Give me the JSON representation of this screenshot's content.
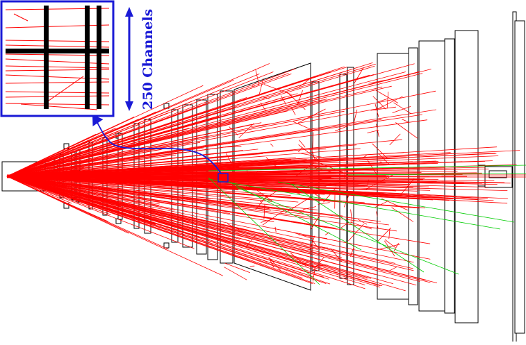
{
  "figure": {
    "inset_label": "250 Channels",
    "colors": {
      "background": "#ffffff",
      "outline": "#000000",
      "tracks": "#ff0000",
      "secondary_tracks": "#00cc00",
      "highlight": "#1a1ad6",
      "inset_bars": "#000000"
    },
    "components": [
      "beam-pipe-block",
      "vertex-station-pairs",
      "tracking-planes",
      "trapezoidal-magnet",
      "downstream-chambers",
      "calorimeter-blocks",
      "far-detector-plates",
      "inset-zoom-panel",
      "zoom-connector-arrow",
      "channel-scale-arrow"
    ]
  }
}
